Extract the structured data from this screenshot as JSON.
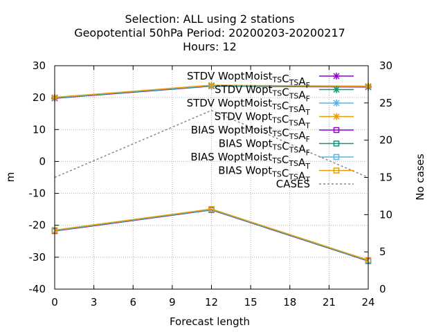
{
  "chart_data": {
    "type": "line",
    "title": [
      "Selection: ALL using     2 stations",
      "Geopotential 50hPa   Period: 20200203-20200217",
      "Hours:  12"
    ],
    "xlabel": "Forecast length",
    "ylabel": "m",
    "y2label": "No cases",
    "xlim": [
      0,
      24
    ],
    "ylim": [
      -40,
      30
    ],
    "y2lim": [
      0,
      30
    ],
    "xticks": [
      0,
      3,
      6,
      9,
      12,
      15,
      18,
      21,
      24
    ],
    "yticks": [
      -40,
      -30,
      -20,
      -10,
      0,
      10,
      20,
      30
    ],
    "y2ticks": [
      0,
      5,
      10,
      15,
      20,
      25,
      30
    ],
    "grid": true,
    "legend_position": "top-right",
    "x": [
      0,
      12,
      24
    ],
    "series": [
      {
        "label": {
          "pre": "STDV WoptMoist",
          "s1": "TS",
          "mid": "C",
          "s2": "TS",
          "mid2": "A",
          "s3": "F"
        },
        "axis": "y",
        "values": [
          19.8,
          23.6,
          23.3
        ],
        "color": "#9400d3",
        "marker": "star",
        "dash": false
      },
      {
        "label": {
          "pre": "STDV Wopt",
          "s1": "TS",
          "mid": "C",
          "s2": "TS",
          "mid2": "A",
          "s3": "F"
        },
        "axis": "y",
        "values": [
          19.9,
          23.7,
          23.4
        ],
        "color": "#009e73",
        "marker": "star",
        "dash": false
      },
      {
        "label": {
          "pre": "STDV WoptMoist",
          "s1": "TS",
          "mid": "C",
          "s2": "TS",
          "mid2": "A",
          "s3": "T"
        },
        "axis": "y",
        "values": [
          20.0,
          23.8,
          23.5
        ],
        "color": "#56b4e9",
        "marker": "star",
        "dash": false
      },
      {
        "label": {
          "pre": "STDV Wopt",
          "s1": "TS",
          "mid": "C",
          "s2": "TS",
          "mid2": "A",
          "s3": "T"
        },
        "axis": "y",
        "values": [
          20.1,
          23.9,
          23.6
        ],
        "color": "#e69f00",
        "marker": "star",
        "dash": false
      },
      {
        "label": {
          "pre": "BIAS WoptMoist",
          "s1": "TS",
          "mid": "C",
          "s2": "TS",
          "mid2": "A",
          "s3": "F"
        },
        "axis": "y",
        "values": [
          -21.8,
          -15.2,
          -31.2
        ],
        "color": "#9400d3",
        "marker": "square",
        "dash": false
      },
      {
        "label": {
          "pre": "BIAS Wopt",
          "s1": "TS",
          "mid": "C",
          "s2": "TS",
          "mid2": "A",
          "s3": "F"
        },
        "axis": "y",
        "values": [
          -21.7,
          -15.1,
          -31.1
        ],
        "color": "#009e73",
        "marker": "square",
        "dash": false
      },
      {
        "label": {
          "pre": "BIAS WoptMoist",
          "s1": "TS",
          "mid": "C",
          "s2": "TS",
          "mid2": "A",
          "s3": "T"
        },
        "axis": "y",
        "values": [
          -21.6,
          -15.0,
          -31.0
        ],
        "color": "#56b4e9",
        "marker": "square",
        "dash": false
      },
      {
        "label": {
          "pre": "BIAS Wopt",
          "s1": "TS",
          "mid": "C",
          "s2": "TS",
          "mid2": "A",
          "s3": "T"
        },
        "axis": "y",
        "values": [
          -21.5,
          -14.9,
          -30.9
        ],
        "color": "#e69f00",
        "marker": "square",
        "dash": false
      },
      {
        "label": {
          "pre": "CASES",
          "s1": "",
          "mid": "",
          "s2": "",
          "mid2": "",
          "s3": ""
        },
        "axis": "y2",
        "values": [
          15,
          24,
          15
        ],
        "color": "#888888",
        "marker": "none",
        "dash": true
      }
    ]
  }
}
